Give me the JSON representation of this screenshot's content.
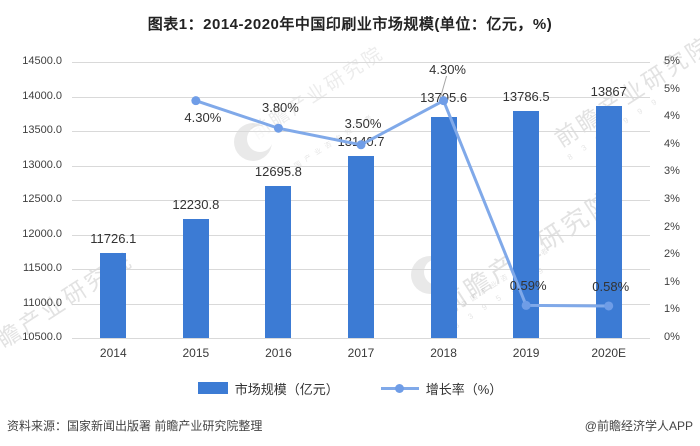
{
  "title": "图表1：2014-2020年中国印刷业市场规模(单位：亿元，%)",
  "source_note": "资料来源：国家新闻出版署 前瞻产业研究院整理",
  "credit": "@前瞻经济学人APP",
  "legend_items": [
    {
      "label": "市场规模（亿元）"
    },
    {
      "label": "增长率（%）"
    }
  ],
  "watermarks": {
    "diagonal_text": "前瞻产业研究院",
    "tagline": "中国产业咨询领导者",
    "digits": "8 3 9 5 9 9 9"
  },
  "colors": {
    "bar": "#3c7bd4",
    "line": "#80a9e9",
    "dot": "#6f9de7",
    "grid": "#d9d9d9",
    "leader": "#a6a6a6"
  },
  "chart_data": {
    "type": "bar+line",
    "title": "图表1：2014-2020年中国印刷业市场规模(单位：亿元，%)",
    "categories": [
      "2014",
      "2015",
      "2016",
      "2017",
      "2018",
      "2019",
      "2020E"
    ],
    "series": [
      {
        "name": "市场规模（亿元）",
        "type": "bar",
        "axis": "left",
        "values": [
          11726.1,
          12230.8,
          12695.8,
          13140.7,
          13705.6,
          13786.5,
          13867
        ],
        "labels": [
          "11726.1",
          "12230.8",
          "12695.8",
          "13140.7",
          "13705.6",
          "13786.5",
          "13867"
        ]
      },
      {
        "name": "增长率（%）",
        "type": "line",
        "axis": "right",
        "values": [
          null,
          4.3,
          3.8,
          3.5,
          4.3,
          0.59,
          0.58
        ],
        "labels": [
          "",
          "4.30%",
          "3.80%",
          "3.50%",
          "4.30%",
          "0.59%",
          "0.58%"
        ]
      }
    ],
    "left_axis": {
      "min": 10500,
      "max": 14500,
      "step": 500,
      "tick_labels": [
        "14500.0",
        "14000.0",
        "13500.0",
        "13000.0",
        "12500.0",
        "12000.0",
        "11500.0",
        "11000.0",
        "10500.0"
      ]
    },
    "right_axis": {
      "min": 0,
      "max": 5,
      "step": 0.5,
      "tick_labels": [
        "5%",
        "5%",
        "4%",
        "4%",
        "3%",
        "3%",
        "2%",
        "2%",
        "1%",
        "1%",
        "0%"
      ]
    },
    "grid": "horizontal",
    "legend_position": "bottom"
  }
}
